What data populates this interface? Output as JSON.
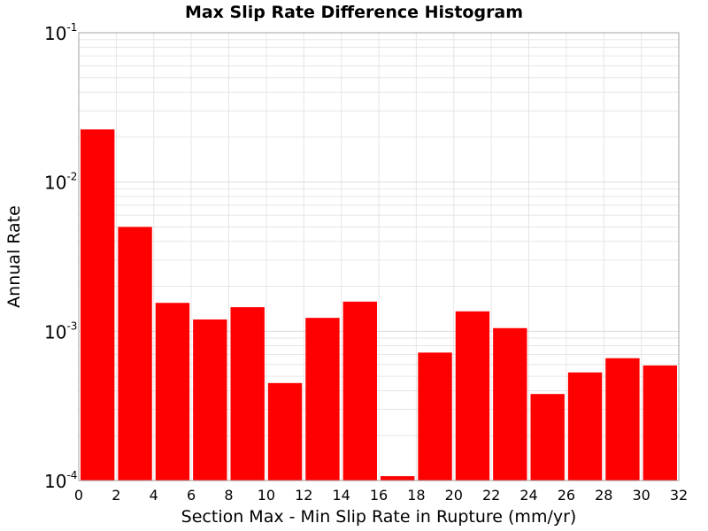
{
  "chart_data": {
    "type": "bar",
    "title": "Max Slip Rate Difference Histogram",
    "xlabel": "Section Max - Min Slip Rate in Rupture (mm/yr)",
    "ylabel": "Annual Rate",
    "xlim": [
      0,
      32
    ],
    "ylim": [
      0.0001,
      0.1
    ],
    "yscale": "log",
    "bin_width": 2,
    "x_ticks": [
      "0",
      "2",
      "4",
      "6",
      "8",
      "10",
      "12",
      "14",
      "16",
      "18",
      "20",
      "22",
      "24",
      "26",
      "28",
      "30",
      "32"
    ],
    "y_ticks": [
      {
        "base": "10",
        "exp": "-4"
      },
      {
        "base": "10",
        "exp": "-3"
      },
      {
        "base": "10",
        "exp": "-2"
      },
      {
        "base": "10",
        "exp": "-1"
      }
    ],
    "bin_starts": [
      0,
      2,
      4,
      6,
      8,
      10,
      12,
      14,
      16,
      18,
      20,
      22,
      24,
      26,
      28,
      30
    ],
    "values": [
      0.0225,
      0.005,
      0.00155,
      0.0012,
      0.00145,
      0.00045,
      0.00123,
      0.00158,
      0.000107,
      0.00072,
      0.00136,
      0.00105,
      0.00038,
      0.00053,
      0.00066,
      0.00059
    ],
    "grid": true,
    "bar_color": "#ff0000",
    "grid_color": "#e6e6e6",
    "axis_color": "#a0a0a0"
  }
}
